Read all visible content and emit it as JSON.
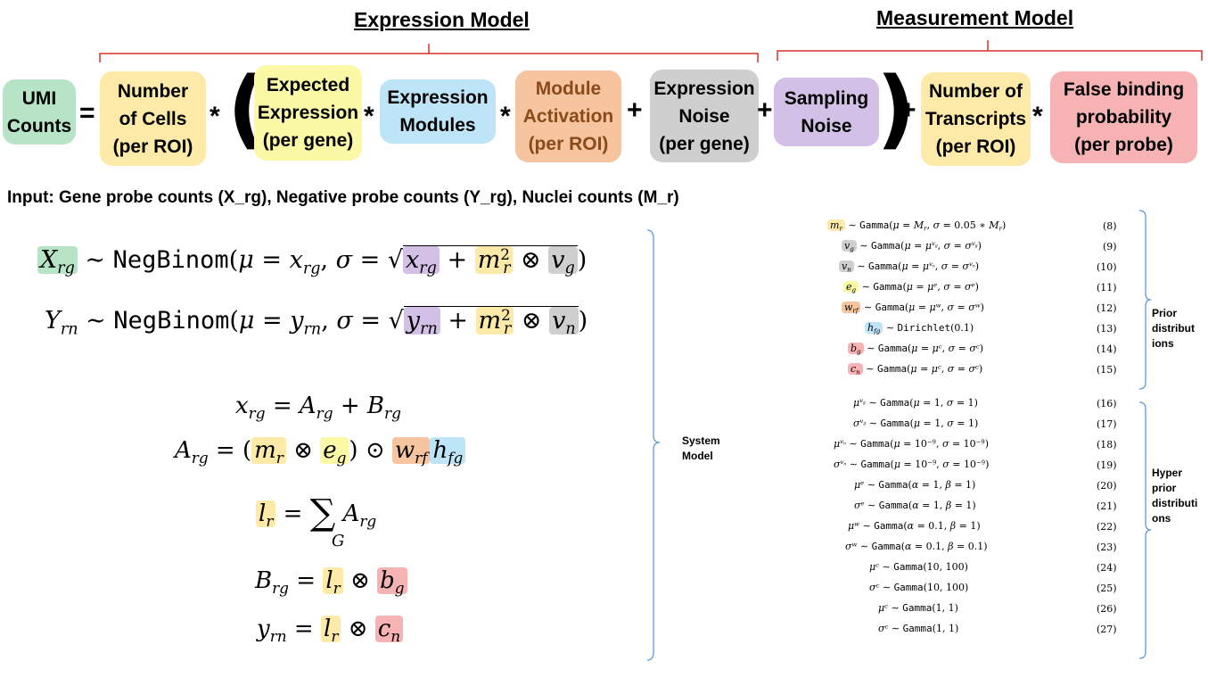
{
  "header": {
    "expression_model": "Expression Model",
    "measurement_model": "Measurement Model"
  },
  "boxes": {
    "umi": "UMI\nCounts",
    "number_of_cells": "Number\nof Cells\n(per ROI)",
    "expected_expression": "Expected\nExpression\n(per gene)",
    "expression_modules": "Expression\nModules",
    "module_activation": "Module\nActivation\n(per ROI)",
    "expression_noise": "Expression\nNoise\n(per gene)",
    "sampling_noise": "Sampling\nNoise",
    "number_of_transcripts": "Number of\nTranscripts\n(per ROI)",
    "false_binding": "False binding\nprobability\n(per probe)"
  },
  "colors": {
    "green": "#b7e4c7",
    "yellow": "#fdeaa8",
    "light_yellow": "#fbf8a6",
    "blue": "#bde4f7",
    "orange": "#f6c49f",
    "grey": "#cfcfcf",
    "purple": "#d3c0e6",
    "red": "#f7b3b3",
    "bracket_red": "#d9302c",
    "brace_blue": "#5b9bd5",
    "module_activation_text": "#8a4a1a"
  },
  "input_line": "Input: Gene probe counts (X_rg), Negative probe counts (Y_rg), Nuclei counts (M_r)",
  "labels": {
    "system_model": "System\nModel",
    "prior_distributions": "Prior\ndistribut\nions",
    "hyper_prior": "Hyper\nprior\ndistributi\nons"
  },
  "equation_numbers": [
    "(8)",
    "(9)",
    "(10)",
    "(11)",
    "(12)",
    "(13)",
    "(14)",
    "(15)",
    "(16)",
    "(17)",
    "(18)",
    "(19)",
    "(20)",
    "(21)",
    "(22)",
    "(23)",
    "(24)",
    "(25)",
    "(26)",
    "(27)"
  ]
}
